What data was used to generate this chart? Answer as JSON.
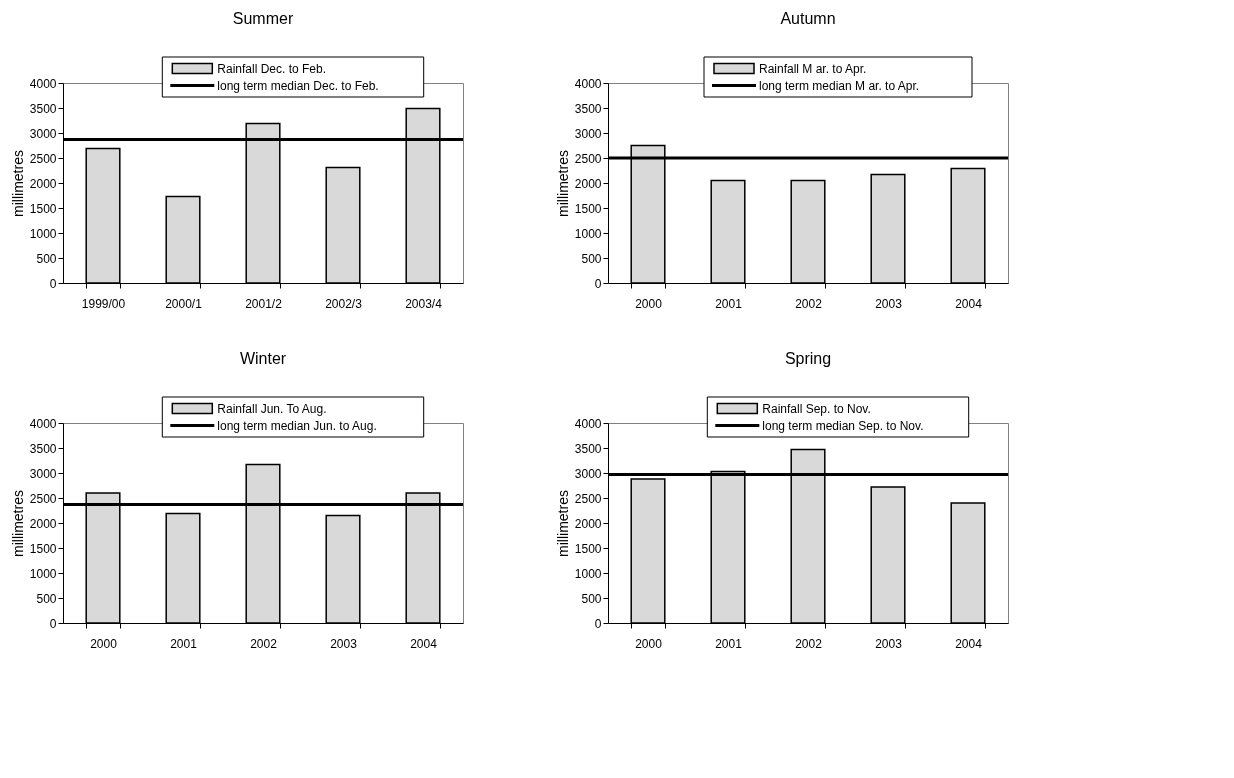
{
  "chart_data": [
    {
      "type": "bar",
      "title": "Summer",
      "ylabel": "millimetres",
      "categories": [
        "1999/00",
        "2000/1",
        "2001/2",
        "2002/3",
        "2003/4"
      ],
      "series": [
        {
          "name": "Rainfall Dec. to Feb.",
          "color": "#d9d9d9",
          "values": [
            2690,
            1730,
            3190,
            2310,
            3490
          ]
        }
      ],
      "ref_lines": [
        {
          "axis": "y",
          "value": 2870,
          "label": "long term median Dec. to Feb.",
          "color": "#000000"
        }
      ],
      "ylim": [
        0,
        4000
      ],
      "yticks": [
        0,
        500,
        1000,
        1500,
        2000,
        2500,
        3000,
        3500,
        4000
      ],
      "legend": "top"
    },
    {
      "type": "bar",
      "title": "Autumn",
      "ylabel": "millimetres",
      "categories": [
        "2000",
        "2001",
        "2002",
        "2003",
        "2004"
      ],
      "series": [
        {
          "name": "Rainfall M ar. to Apr.",
          "color": "#d9d9d9",
          "values": [
            2750,
            2050,
            2050,
            2170,
            2290
          ]
        }
      ],
      "ref_lines": [
        {
          "axis": "y",
          "value": 2500,
          "label": "long term median M ar. to Apr.",
          "color": "#000000"
        }
      ],
      "ylim": [
        0,
        4000
      ],
      "yticks": [
        0,
        500,
        1000,
        1500,
        2000,
        2500,
        3000,
        3500,
        4000
      ],
      "legend": "top"
    },
    {
      "type": "bar",
      "title": "Winter",
      "ylabel": "millimetres",
      "categories": [
        "2000",
        "2001",
        "2002",
        "2003",
        "2004"
      ],
      "series": [
        {
          "name": "Rainfall Jun. To Aug.",
          "color": "#d9d9d9",
          "values": [
            2600,
            2190,
            3170,
            2150,
            2600
          ]
        }
      ],
      "ref_lines": [
        {
          "axis": "y",
          "value": 2370,
          "label": "long term median Jun. to Aug.",
          "color": "#000000"
        }
      ],
      "ylim": [
        0,
        4000
      ],
      "yticks": [
        0,
        500,
        1000,
        1500,
        2000,
        2500,
        3000,
        3500,
        4000
      ],
      "legend": "top"
    },
    {
      "type": "bar",
      "title": "Spring",
      "ylabel": "millimetres",
      "categories": [
        "2000",
        "2001",
        "2002",
        "2003",
        "2004"
      ],
      "series": [
        {
          "name": "Rainfall Sep. to Nov.",
          "color": "#d9d9d9",
          "values": [
            2880,
            3030,
            3470,
            2720,
            2400
          ]
        }
      ],
      "ref_lines": [
        {
          "axis": "y",
          "value": 2970,
          "label": "long term median Sep. to Nov.",
          "color": "#000000"
        }
      ],
      "ylim": [
        0,
        4000
      ],
      "yticks": [
        0,
        500,
        1000,
        1500,
        2000,
        2500,
        3000,
        3500,
        4000
      ],
      "legend": "top"
    }
  ]
}
